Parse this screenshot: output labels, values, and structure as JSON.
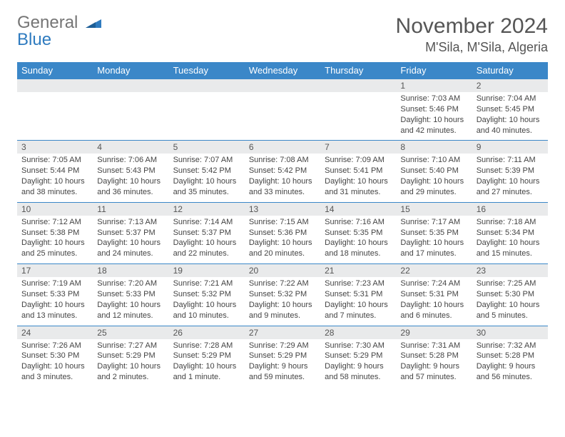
{
  "brand": {
    "part1": "General",
    "part2": "Blue"
  },
  "title": "November 2024",
  "location": "M'Sila, M'Sila, Algeria",
  "colors": {
    "header_bg": "#3b87c8",
    "header_text": "#ffffff",
    "daynum_bg": "#e9eaeb",
    "border": "#3b87c8",
    "brand_gray": "#757575",
    "brand_blue": "#2f7bbf"
  },
  "day_headers": [
    "Sunday",
    "Monday",
    "Tuesday",
    "Wednesday",
    "Thursday",
    "Friday",
    "Saturday"
  ],
  "weeks": [
    [
      null,
      null,
      null,
      null,
      null,
      {
        "d": "1",
        "sr": "7:03 AM",
        "ss": "5:46 PM",
        "dl": "10 hours and 42 minutes."
      },
      {
        "d": "2",
        "sr": "7:04 AM",
        "ss": "5:45 PM",
        "dl": "10 hours and 40 minutes."
      }
    ],
    [
      {
        "d": "3",
        "sr": "7:05 AM",
        "ss": "5:44 PM",
        "dl": "10 hours and 38 minutes."
      },
      {
        "d": "4",
        "sr": "7:06 AM",
        "ss": "5:43 PM",
        "dl": "10 hours and 36 minutes."
      },
      {
        "d": "5",
        "sr": "7:07 AM",
        "ss": "5:42 PM",
        "dl": "10 hours and 35 minutes."
      },
      {
        "d": "6",
        "sr": "7:08 AM",
        "ss": "5:42 PM",
        "dl": "10 hours and 33 minutes."
      },
      {
        "d": "7",
        "sr": "7:09 AM",
        "ss": "5:41 PM",
        "dl": "10 hours and 31 minutes."
      },
      {
        "d": "8",
        "sr": "7:10 AM",
        "ss": "5:40 PM",
        "dl": "10 hours and 29 minutes."
      },
      {
        "d": "9",
        "sr": "7:11 AM",
        "ss": "5:39 PM",
        "dl": "10 hours and 27 minutes."
      }
    ],
    [
      {
        "d": "10",
        "sr": "7:12 AM",
        "ss": "5:38 PM",
        "dl": "10 hours and 25 minutes."
      },
      {
        "d": "11",
        "sr": "7:13 AM",
        "ss": "5:37 PM",
        "dl": "10 hours and 24 minutes."
      },
      {
        "d": "12",
        "sr": "7:14 AM",
        "ss": "5:37 PM",
        "dl": "10 hours and 22 minutes."
      },
      {
        "d": "13",
        "sr": "7:15 AM",
        "ss": "5:36 PM",
        "dl": "10 hours and 20 minutes."
      },
      {
        "d": "14",
        "sr": "7:16 AM",
        "ss": "5:35 PM",
        "dl": "10 hours and 18 minutes."
      },
      {
        "d": "15",
        "sr": "7:17 AM",
        "ss": "5:35 PM",
        "dl": "10 hours and 17 minutes."
      },
      {
        "d": "16",
        "sr": "7:18 AM",
        "ss": "5:34 PM",
        "dl": "10 hours and 15 minutes."
      }
    ],
    [
      {
        "d": "17",
        "sr": "7:19 AM",
        "ss": "5:33 PM",
        "dl": "10 hours and 13 minutes."
      },
      {
        "d": "18",
        "sr": "7:20 AM",
        "ss": "5:33 PM",
        "dl": "10 hours and 12 minutes."
      },
      {
        "d": "19",
        "sr": "7:21 AM",
        "ss": "5:32 PM",
        "dl": "10 hours and 10 minutes."
      },
      {
        "d": "20",
        "sr": "7:22 AM",
        "ss": "5:32 PM",
        "dl": "10 hours and 9 minutes."
      },
      {
        "d": "21",
        "sr": "7:23 AM",
        "ss": "5:31 PM",
        "dl": "10 hours and 7 minutes."
      },
      {
        "d": "22",
        "sr": "7:24 AM",
        "ss": "5:31 PM",
        "dl": "10 hours and 6 minutes."
      },
      {
        "d": "23",
        "sr": "7:25 AM",
        "ss": "5:30 PM",
        "dl": "10 hours and 5 minutes."
      }
    ],
    [
      {
        "d": "24",
        "sr": "7:26 AM",
        "ss": "5:30 PM",
        "dl": "10 hours and 3 minutes."
      },
      {
        "d": "25",
        "sr": "7:27 AM",
        "ss": "5:29 PM",
        "dl": "10 hours and 2 minutes."
      },
      {
        "d": "26",
        "sr": "7:28 AM",
        "ss": "5:29 PM",
        "dl": "10 hours and 1 minute."
      },
      {
        "d": "27",
        "sr": "7:29 AM",
        "ss": "5:29 PM",
        "dl": "9 hours and 59 minutes."
      },
      {
        "d": "28",
        "sr": "7:30 AM",
        "ss": "5:29 PM",
        "dl": "9 hours and 58 minutes."
      },
      {
        "d": "29",
        "sr": "7:31 AM",
        "ss": "5:28 PM",
        "dl": "9 hours and 57 minutes."
      },
      {
        "d": "30",
        "sr": "7:32 AM",
        "ss": "5:28 PM",
        "dl": "9 hours and 56 minutes."
      }
    ]
  ]
}
